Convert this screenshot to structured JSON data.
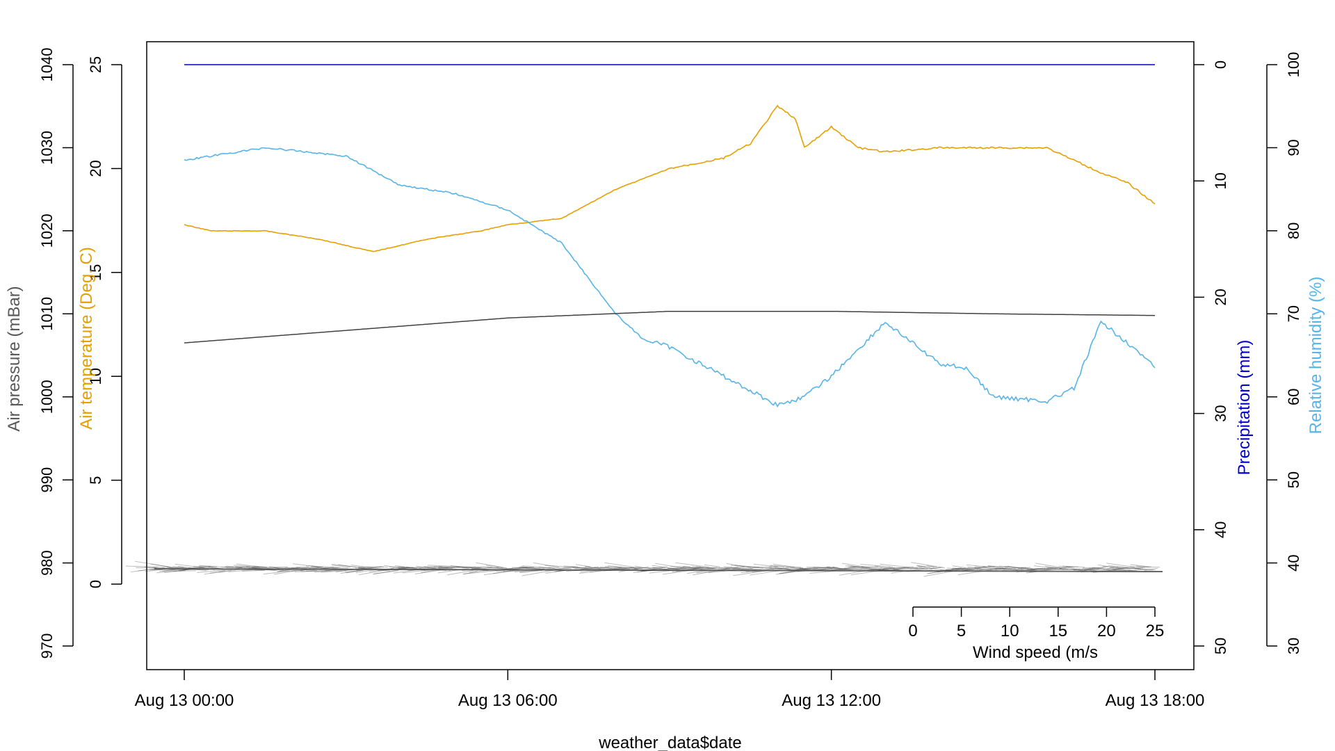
{
  "chart_data": {
    "type": "line",
    "xlabel": "weather_data$date",
    "x_ticks": [
      "Aug 13 00:00",
      "Aug 13 06:00",
      "Aug 13 12:00",
      "Aug 13 18:00"
    ],
    "x_range": [
      "Aug 13 00:00",
      "Aug 13 18:00"
    ],
    "axes": {
      "air_temperature": {
        "label": "Air temperature (Deg. C)",
        "ticks": [
          0,
          5,
          10,
          15,
          20,
          25
        ],
        "range": [
          -4.2,
          26.1
        ],
        "side": "left",
        "color": "#E69F00"
      },
      "air_pressure": {
        "label": "Air pressure (mBar)",
        "ticks": [
          970,
          980,
          990,
          1000,
          1010,
          1020,
          1030,
          1040
        ],
        "range": [
          967,
          1040
        ],
        "side": "left",
        "color": "#595959"
      },
      "precipitation": {
        "label": "Precipitation (mm)",
        "ticks": [
          0,
          10,
          20,
          30,
          40,
          50
        ],
        "range": [
          0,
          50
        ],
        "inverted": true,
        "side": "right",
        "color": "#0000CC"
      },
      "relative_humidity": {
        "label": "Relative humidity (%)",
        "ticks": [
          30,
          40,
          50,
          60,
          70,
          80,
          90,
          100
        ],
        "range": [
          30,
          100
        ],
        "side": "right",
        "color": "#56B4E9"
      }
    },
    "series": [
      {
        "name": "Air temperature (Deg. C)",
        "axis": "air_temperature",
        "color": "#E69F00",
        "x": [
          "Aug 13 00:00",
          "Aug 13 00:30",
          "Aug 13 01:30",
          "Aug 13 02:30",
          "Aug 13 03:30",
          "Aug 13 04:30",
          "Aug 13 05:30",
          "Aug 13 06:00",
          "Aug 13 07:00",
          "Aug 13 08:00",
          "Aug 13 09:00",
          "Aug 13 10:00",
          "Aug 13 10:30",
          "Aug 13 11:00",
          "Aug 13 11:20",
          "Aug 13 11:30",
          "Aug 13 12:00",
          "Aug 13 12:30",
          "Aug 13 13:00",
          "Aug 13 14:00",
          "Aug 13 15:00",
          "Aug 13 16:00",
          "Aug 13 16:30",
          "Aug 13 17:00",
          "Aug 13 17:30",
          "Aug 13 18:00"
        ],
        "values": [
          17.3,
          17.0,
          17.0,
          16.6,
          16.0,
          16.6,
          17.0,
          17.3,
          17.6,
          19.0,
          20.0,
          20.5,
          21.2,
          23.0,
          22.4,
          21.0,
          22.0,
          21.0,
          20.8,
          21.0,
          21.0,
          21.0,
          20.4,
          19.8,
          19.3,
          18.3
        ]
      },
      {
        "name": "Relative humidity (%)",
        "axis": "relative_humidity",
        "color": "#56B4E9",
        "x": [
          "Aug 13 00:00",
          "Aug 13 01:30",
          "Aug 13 03:00",
          "Aug 13 04:00",
          "Aug 13 05:00",
          "Aug 13 06:00",
          "Aug 13 07:00",
          "Aug 13 08:00",
          "Aug 13 08:30",
          "Aug 13 09:00",
          "Aug 13 10:00",
          "Aug 13 11:00",
          "Aug 13 11:30",
          "Aug 13 12:00",
          "Aug 13 13:00",
          "Aug 13 14:00",
          "Aug 13 14:30",
          "Aug 13 15:00",
          "Aug 13 16:00",
          "Aug 13 16:30",
          "Aug 13 17:00",
          "Aug 13 17:30",
          "Aug 13 18:00"
        ],
        "values": [
          88.5,
          90.0,
          89.0,
          85.5,
          84.5,
          82.5,
          78.5,
          70.0,
          67.0,
          66.0,
          62.5,
          59.0,
          60.0,
          62.5,
          69.0,
          64.0,
          63.5,
          60.0,
          59.5,
          61.0,
          69.0,
          66.5,
          63.5
        ]
      },
      {
        "name": "Air pressure (mBar)",
        "axis": "air_pressure",
        "color": "#404040",
        "x": [
          "Aug 13 00:00",
          "Aug 13 03:00",
          "Aug 13 06:00",
          "Aug 13 09:00",
          "Aug 13 12:00",
          "Aug 13 15:00",
          "Aug 13 18:00"
        ],
        "values": [
          1006.5,
          1008.0,
          1009.5,
          1010.3,
          1010.3,
          1010.0,
          1009.8
        ]
      },
      {
        "name": "Precipitation (mm)",
        "axis": "precipitation",
        "color": "#0000CC",
        "x": [
          "Aug 13 00:00",
          "Aug 13 18:00"
        ],
        "values": [
          0,
          0
        ]
      }
    ],
    "wind_barbs": {
      "scale_label": "Wind speed (m/s",
      "scale_ticks": [
        0,
        5,
        10,
        15,
        20,
        25
      ],
      "color": "#404040",
      "note": "wind vectors plotted along bottom of panel"
    },
    "grid": false,
    "legend": "none"
  }
}
